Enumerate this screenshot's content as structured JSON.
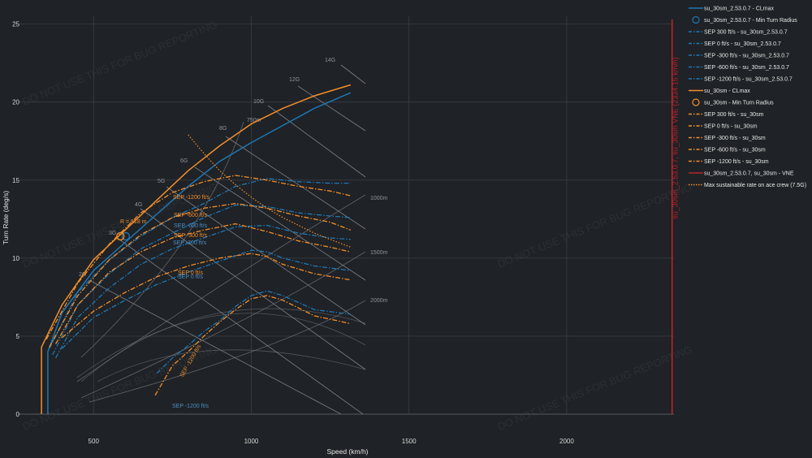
{
  "watermark": "DO NOT USE THIS FOR BUG REPORTING",
  "chart_data": {
    "type": "line",
    "xlabel": "Speed (km/h)",
    "ylabel": "Turn Rate (deg/s)",
    "xlim": [
      260,
      2340
    ],
    "ylim": [
      0,
      25.5
    ],
    "x_ticks": [
      500,
      1000,
      1500,
      2000
    ],
    "y_ticks": [
      0,
      5,
      10,
      15,
      20,
      25
    ],
    "grid": true,
    "legend_position": "right",
    "colors": {
      "su30sm_2530": "#1f77b4",
      "su30sm": "#f28e2b",
      "vne": "#b8242b",
      "max_rate": "#f28e2b"
    },
    "g_lines": [
      {
        "label": "2G"
      },
      {
        "label": "3G"
      },
      {
        "label": "4G"
      },
      {
        "label": "5G"
      },
      {
        "label": "6G"
      },
      {
        "label": "8G"
      },
      {
        "label": "10G"
      },
      {
        "label": "12G"
      },
      {
        "label": "14G"
      }
    ],
    "radius_labels": [
      "750m",
      "1000m",
      "1500m",
      "2000m"
    ],
    "series": [
      {
        "name": "su_30sm_2.53.0.7 - CLmax",
        "x": [
          355,
          355,
          400,
          500,
          600,
          700,
          800,
          900,
          1000,
          1100,
          1200,
          1315
        ],
        "y": [
          0,
          4,
          6.5,
          9.2,
          11.0,
          12.8,
          14.6,
          16.2,
          17.4,
          18.5,
          19.6,
          20.6
        ]
      },
      {
        "name": "su_30sm_2.53.0.7 - Min Turn Radius",
        "x": [
          602
        ],
        "y": [
          11.4
        ]
      },
      {
        "name": "SEP 300 ft/s - su_30sm_2.53.0.7",
        "x": [
          360,
          450,
          550,
          650,
          750,
          850,
          950,
          1050,
          1150,
          1250,
          1315
        ],
        "y": [
          4.2,
          7.8,
          9.9,
          11.4,
          12.6,
          13.5,
          14.6,
          15.1,
          14.9,
          14.8,
          14.8
        ]
      },
      {
        "name": "SEP 0 ft/s - su_30sm_2.53.0.7",
        "x": [
          370,
          450,
          550,
          650,
          750,
          850,
          950,
          1050,
          1150,
          1250,
          1315
        ],
        "y": [
          3.8,
          7.0,
          9.0,
          10.6,
          11.6,
          12.6,
          13.4,
          13.3,
          12.9,
          12.7,
          12.6
        ]
      },
      {
        "name": "SEP -300 ft/s - su_30sm_2.53.0.7",
        "x": [
          380,
          450,
          550,
          650,
          750,
          850,
          950,
          1050,
          1150,
          1250,
          1315
        ],
        "y": [
          3.6,
          6.2,
          8.1,
          9.6,
          10.6,
          11.3,
          12.0,
          12.1,
          11.6,
          11.3,
          11.2
        ]
      },
      {
        "name": "SEP -600 ft/s - su_30sm_2.53.0.7",
        "x": [
          400,
          500,
          600,
          700,
          800,
          900,
          1000,
          1050,
          1100,
          1200,
          1315
        ],
        "y": [
          4.2,
          6.2,
          7.3,
          8.3,
          9.1,
          9.8,
          10.5,
          10.4,
          10.0,
          9.5,
          9.2
        ]
      },
      {
        "name": "SEP -1200 ft/s - su_30sm_2.53.0.7",
        "x": [
          700,
          750,
          800,
          850,
          900,
          950,
          1000,
          1050,
          1100,
          1200,
          1315
        ],
        "y": [
          2.6,
          3.6,
          4.4,
          5.3,
          6.0,
          6.9,
          7.6,
          7.9,
          7.6,
          6.7,
          6.4
        ]
      },
      {
        "name": "su_30sm - CLmax",
        "x": [
          335,
          335,
          400,
          500,
          600,
          700,
          800,
          900,
          1000,
          1100,
          1200,
          1315
        ],
        "y": [
          0,
          4.3,
          7.0,
          9.9,
          11.8,
          13.7,
          15.6,
          17.2,
          18.6,
          19.6,
          20.4,
          21.1
        ]
      },
      {
        "name": "su_30sm - Min Turn Radius",
        "x": [
          585
        ],
        "y": [
          11.4
        ]
      },
      {
        "name": "SEP 300 ft/s - su_30sm",
        "x": [
          350,
          450,
          550,
          650,
          750,
          850,
          950,
          1050,
          1150,
          1250,
          1315
        ],
        "y": [
          4.8,
          8.4,
          10.9,
          12.9,
          14.2,
          14.9,
          15.3,
          15.0,
          14.6,
          14.3,
          14.0
        ]
      },
      {
        "name": "SEP 0 ft/s - su_30sm",
        "x": [
          360,
          450,
          550,
          650,
          750,
          850,
          950,
          1050,
          1150,
          1250,
          1315
        ],
        "y": [
          4.3,
          7.6,
          9.9,
          11.5,
          12.6,
          13.2,
          13.5,
          13.2,
          12.7,
          12.3,
          11.8
        ]
      },
      {
        "name": "SEP -300 ft/s - su_30sm",
        "x": [
          380,
          450,
          550,
          650,
          750,
          850,
          950,
          1050,
          1150,
          1250,
          1315
        ],
        "y": [
          4.5,
          7.0,
          9.1,
          10.4,
          11.3,
          11.8,
          12.2,
          11.7,
          11.1,
          10.7,
          10.4
        ]
      },
      {
        "name": "SEP -600 ft/s - su_30sm",
        "x": [
          400,
          500,
          600,
          700,
          800,
          900,
          1000,
          1050,
          1100,
          1200,
          1315
        ],
        "y": [
          4.9,
          6.6,
          7.8,
          8.8,
          9.5,
          10.0,
          10.3,
          10.1,
          9.6,
          9.0,
          8.6
        ]
      },
      {
        "name": "SEP -1200 ft/s - su_30sm",
        "x": [
          695,
          750,
          800,
          850,
          900,
          950,
          1000,
          1050,
          1100,
          1200,
          1315
        ],
        "y": [
          1.2,
          3.1,
          4.0,
          5.0,
          5.9,
          6.7,
          7.4,
          7.6,
          7.3,
          6.3,
          5.8
        ]
      },
      {
        "name": "su_30sm_2.53.0.7, su_30sm - VNE",
        "x": [
          2334.15,
          2334.15
        ],
        "y": [
          0,
          25.3
        ]
      },
      {
        "name": "Max sustainable rate on ace crew (7.5G)",
        "x": [
          800,
          850,
          900,
          950,
          1000,
          1050,
          1100,
          1150,
          1200,
          1250,
          1315
        ],
        "y": [
          17.9,
          16.7,
          15.6,
          14.7,
          13.9,
          13.2,
          12.6,
          12.1,
          11.6,
          11.2,
          10.7
        ]
      }
    ],
    "annotations": [
      {
        "text": "R = 818 m"
      },
      {
        "text": "SEP -1200 ft/s"
      },
      {
        "text": "SEP -600 ft/s"
      },
      {
        "text": "SEP -300 ft/s"
      },
      {
        "text": "SEP 0 ft/s"
      },
      {
        "text": "SEP -1200 ft/s"
      },
      {
        "text": "SEP -600 ft/s"
      },
      {
        "text": "SEP -300 ft/s"
      },
      {
        "text": "SEP 0 ft/s"
      },
      {
        "text": "SEP -1200 ft/s"
      }
    ],
    "vne_label": "su_30sm_2.53.0.7, su_30sm VNE (2334.15 km/h)"
  }
}
